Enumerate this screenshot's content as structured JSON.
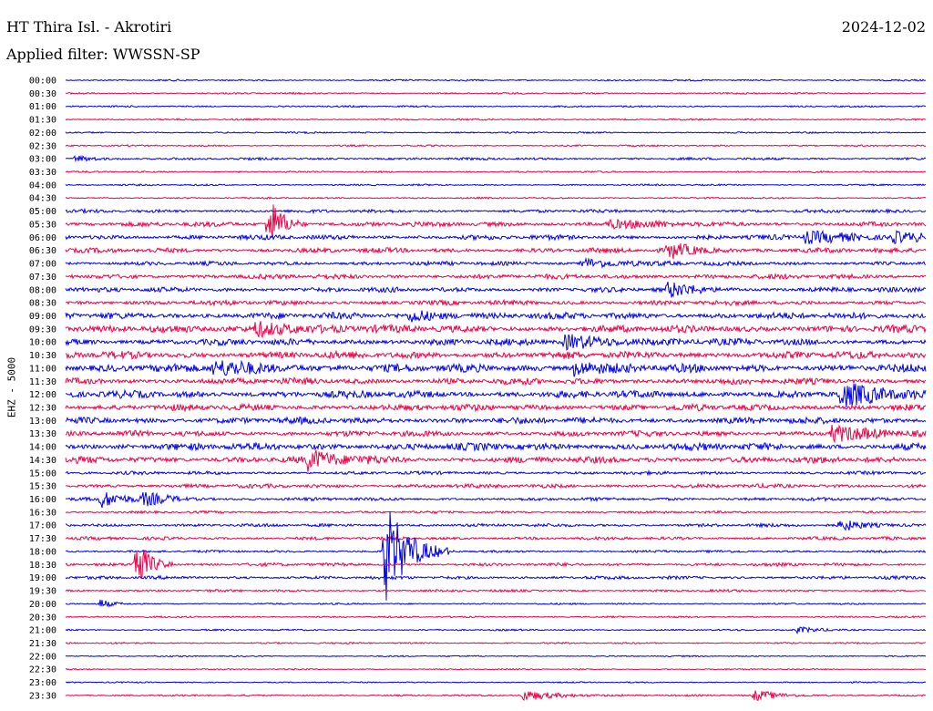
{
  "header": {
    "station": "HT Thira Isl. - Akrotiri",
    "date": "2024-12-02",
    "filter": "Applied filter: WWSSN-SP"
  },
  "chart_data": {
    "type": "line",
    "title": "HT Thira Isl. - Akrotiri",
    "ylabel": "EHZ - 5000",
    "time_labels": [
      "00:00",
      "00:30",
      "01:00",
      "01:30",
      "02:00",
      "02:30",
      "03:00",
      "03:30",
      "04:00",
      "04:30",
      "05:00",
      "05:30",
      "06:00",
      "06:30",
      "07:00",
      "07:30",
      "08:00",
      "08:30",
      "09:00",
      "09:30",
      "10:00",
      "10:30",
      "11:00",
      "11:30",
      "12:00",
      "12:30",
      "13:00",
      "13:30",
      "14:00",
      "14:30",
      "15:00",
      "15:30",
      "16:00",
      "16:30",
      "17:00",
      "17:30",
      "18:00",
      "18:30",
      "19:00",
      "19:30",
      "20:00",
      "20:30",
      "21:00",
      "21:30",
      "22:00",
      "22:30",
      "23:00",
      "23:30"
    ],
    "trace_colors": [
      "#0000ee",
      "#ee0044"
    ],
    "noise_level": [
      1,
      1,
      1,
      1,
      1,
      1,
      1.5,
      1,
      1,
      1,
      2,
      3,
      3,
      3,
      2.5,
      3,
      3,
      3,
      4,
      4.5,
      4,
      4.5,
      5,
      4,
      4.5,
      4,
      4,
      3.5,
      4.5,
      4,
      2,
      2.5,
      2,
      1.5,
      2,
      2,
      1.5,
      2,
      2,
      1.5,
      1,
      1,
      1,
      1,
      0.8,
      0.8,
      0.8,
      1
    ],
    "events": [
      {
        "row": 6,
        "x_fraction": 0.01,
        "amplitude": 4,
        "duration": 0.02
      },
      {
        "row": 11,
        "x_fraction": 0.235,
        "amplitude": 32,
        "duration": 0.015
      },
      {
        "row": 11,
        "x_fraction": 0.63,
        "amplitude": 5,
        "duration": 0.04
      },
      {
        "row": 12,
        "x_fraction": 0.86,
        "amplitude": 7,
        "duration": 0.05
      },
      {
        "row": 12,
        "x_fraction": 0.96,
        "amplitude": 6,
        "duration": 0.04
      },
      {
        "row": 13,
        "x_fraction": 0.7,
        "amplitude": 9,
        "duration": 0.03
      },
      {
        "row": 14,
        "x_fraction": 0.6,
        "amplitude": 6,
        "duration": 0.04
      },
      {
        "row": 16,
        "x_fraction": 0.7,
        "amplitude": 8,
        "duration": 0.03
      },
      {
        "row": 18,
        "x_fraction": 0.4,
        "amplitude": 7,
        "duration": 0.03
      },
      {
        "row": 19,
        "x_fraction": 0.22,
        "amplitude": 8,
        "duration": 0.05
      },
      {
        "row": 20,
        "x_fraction": 0.58,
        "amplitude": 7,
        "duration": 0.06
      },
      {
        "row": 22,
        "x_fraction": 0.17,
        "amplitude": 8,
        "duration": 0.05
      },
      {
        "row": 22,
        "x_fraction": 0.59,
        "amplitude": 8,
        "duration": 0.03
      },
      {
        "row": 24,
        "x_fraction": 0.9,
        "amplitude": 12,
        "duration": 0.05
      },
      {
        "row": 27,
        "x_fraction": 0.89,
        "amplitude": 9,
        "duration": 0.04
      },
      {
        "row": 29,
        "x_fraction": 0.28,
        "amplitude": 10,
        "duration": 0.04
      },
      {
        "row": 32,
        "x_fraction": 0.04,
        "amplitude": 9,
        "duration": 0.03
      },
      {
        "row": 32,
        "x_fraction": 0.09,
        "amplitude": 6,
        "duration": 0.03
      },
      {
        "row": 34,
        "x_fraction": 0.9,
        "amplitude": 6,
        "duration": 0.03
      },
      {
        "row": 36,
        "x_fraction": 0.37,
        "amplitude": 60,
        "duration": 0.025
      },
      {
        "row": 37,
        "x_fraction": 0.08,
        "amplitude": 34,
        "duration": 0.015
      },
      {
        "row": 40,
        "x_fraction": 0.04,
        "amplitude": 6,
        "duration": 0.01
      },
      {
        "row": 42,
        "x_fraction": 0.85,
        "amplitude": 3,
        "duration": 0.03
      },
      {
        "row": 47,
        "x_fraction": 0.53,
        "amplitude": 6,
        "duration": 0.04
      },
      {
        "row": 47,
        "x_fraction": 0.8,
        "amplitude": 6,
        "duration": 0.03
      }
    ]
  }
}
